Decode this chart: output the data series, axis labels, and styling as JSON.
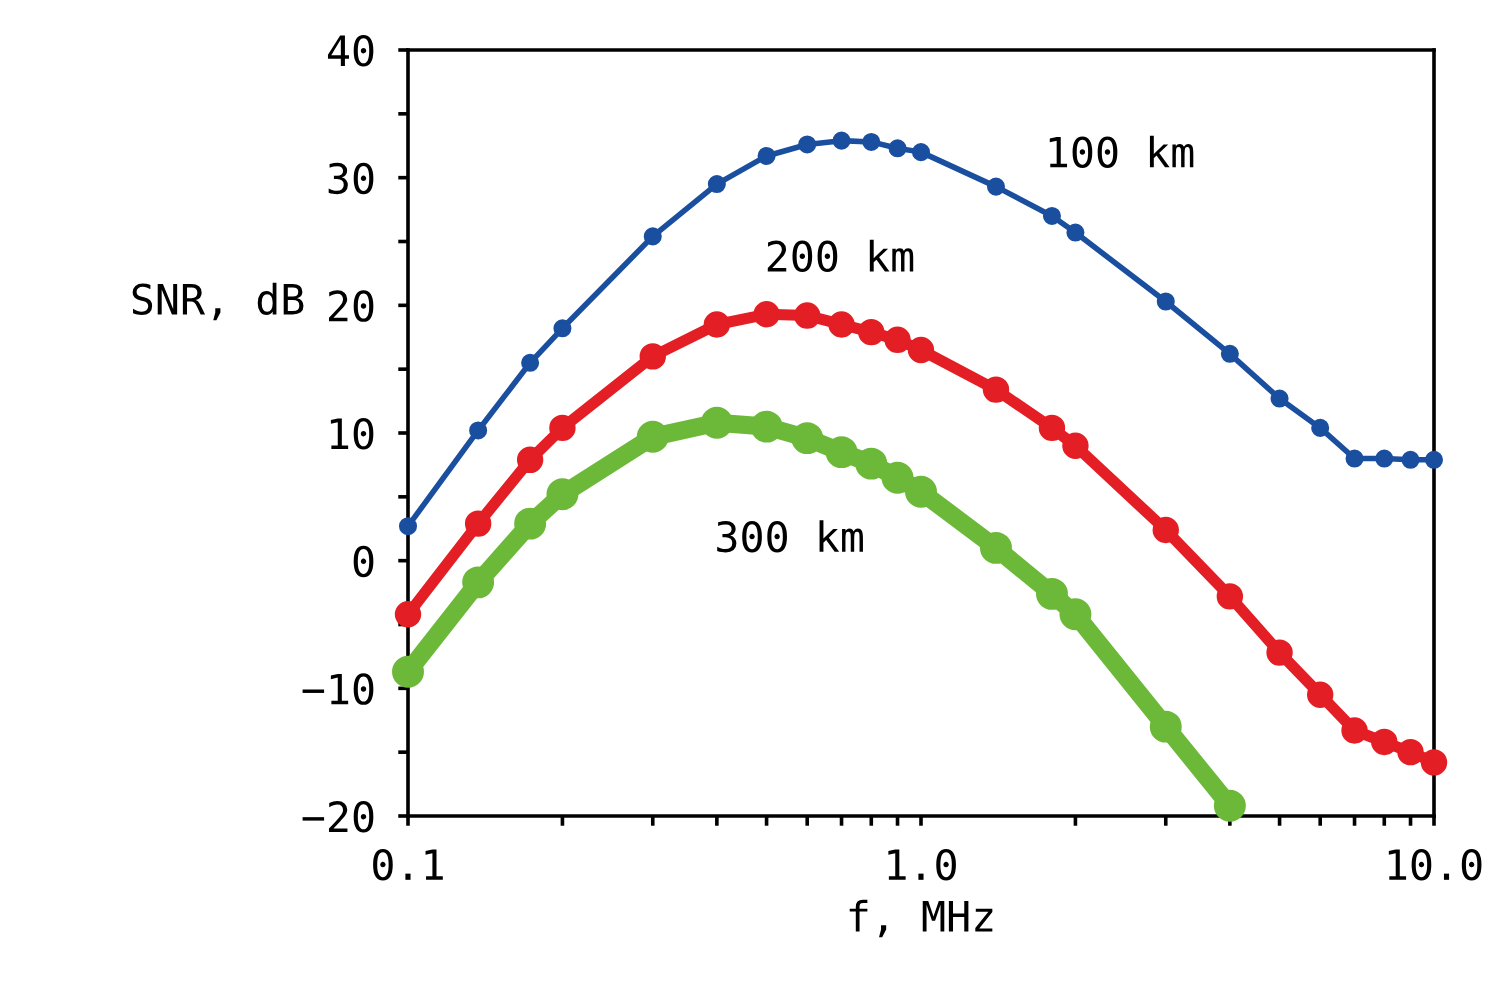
{
  "chart_data": {
    "type": "line",
    "xlabel": "f, MHz",
    "ylabel": "SNR, dB",
    "log": "x",
    "marker": "circle",
    "line_style": "solid",
    "grid": false,
    "xlim": [
      0.1,
      10
    ],
    "ylim": [
      -20,
      40
    ],
    "xticks": [
      {
        "value": 0.1,
        "label": "0.1"
      },
      {
        "value": 0.2,
        "label": null
      },
      {
        "value": 0.3,
        "label": null
      },
      {
        "value": 0.4,
        "label": null
      },
      {
        "value": 0.5,
        "label": null
      },
      {
        "value": 0.6,
        "label": null
      },
      {
        "value": 0.7,
        "label": null
      },
      {
        "value": 0.8,
        "label": null
      },
      {
        "value": 0.9,
        "label": null
      },
      {
        "value": 1,
        "label": "1.0"
      },
      {
        "value": 2,
        "label": null
      },
      {
        "value": 3,
        "label": null
      },
      {
        "value": 4,
        "label": null
      },
      {
        "value": 5,
        "label": null
      },
      {
        "value": 6,
        "label": null
      },
      {
        "value": 7,
        "label": null
      },
      {
        "value": 8,
        "label": null
      },
      {
        "value": 9,
        "label": null
      },
      {
        "value": 10,
        "label": "10.0"
      }
    ],
    "yticks": [
      {
        "value": -20,
        "label": "−20"
      },
      {
        "value": -15,
        "label": null
      },
      {
        "value": -10,
        "label": "−10"
      },
      {
        "value": -5,
        "label": null
      },
      0,
      {
        "value": 5,
        "label": null
      },
      10,
      {
        "value": 15,
        "label": null
      },
      20,
      {
        "value": 25,
        "label": null
      },
      30,
      {
        "value": 35,
        "label": null
      },
      40
    ],
    "series": [
      {
        "name": "100 km",
        "color": "#1a4fa0",
        "x": [
          0.1,
          0.137,
          0.173,
          0.2,
          0.3,
          0.4,
          0.5,
          0.6,
          0.7,
          0.8,
          0.9,
          1.0,
          1.4,
          1.8,
          2.0,
          3.0,
          4.0,
          5.0,
          6.0,
          7.0,
          8.0,
          9.0,
          10.0
        ],
        "values": [
          2.7,
          10.2,
          15.5,
          18.2,
          25.4,
          29.5,
          31.7,
          32.6,
          32.9,
          32.8,
          32.3,
          32.0,
          29.3,
          27.0,
          25.7,
          20.3,
          16.2,
          12.7,
          10.4,
          8.0,
          8.0,
          7.9,
          7.9
        ]
      },
      {
        "name": "200 km",
        "color": "#e31e24",
        "x": [
          0.1,
          0.137,
          0.173,
          0.2,
          0.3,
          0.4,
          0.5,
          0.6,
          0.7,
          0.8,
          0.9,
          1.0,
          1.4,
          1.8,
          2.0,
          3.0,
          4.0,
          5.0,
          6.0,
          7.0,
          8.0,
          9.0,
          10.0
        ],
        "values": [
          -4.2,
          2.9,
          7.9,
          10.4,
          16.0,
          18.5,
          19.3,
          19.2,
          18.5,
          17.9,
          17.3,
          16.5,
          13.4,
          10.4,
          9.0,
          2.4,
          -2.8,
          -7.2,
          -10.5,
          -13.3,
          -14.2,
          -15.0,
          -15.8
        ]
      },
      {
        "name": "300 km",
        "color": "#6cb93a",
        "x": [
          0.1,
          0.137,
          0.173,
          0.2,
          0.3,
          0.4,
          0.5,
          0.6,
          0.7,
          0.8,
          0.9,
          1.0,
          1.4,
          1.8,
          2.0,
          3.0,
          4.0
        ],
        "values": [
          -8.7,
          -1.7,
          2.9,
          5.2,
          9.7,
          10.8,
          10.5,
          9.6,
          8.5,
          7.6,
          6.5,
          5.4,
          1.0,
          -2.6,
          -4.2,
          -13.0,
          -19.2
        ]
      }
    ]
  }
}
